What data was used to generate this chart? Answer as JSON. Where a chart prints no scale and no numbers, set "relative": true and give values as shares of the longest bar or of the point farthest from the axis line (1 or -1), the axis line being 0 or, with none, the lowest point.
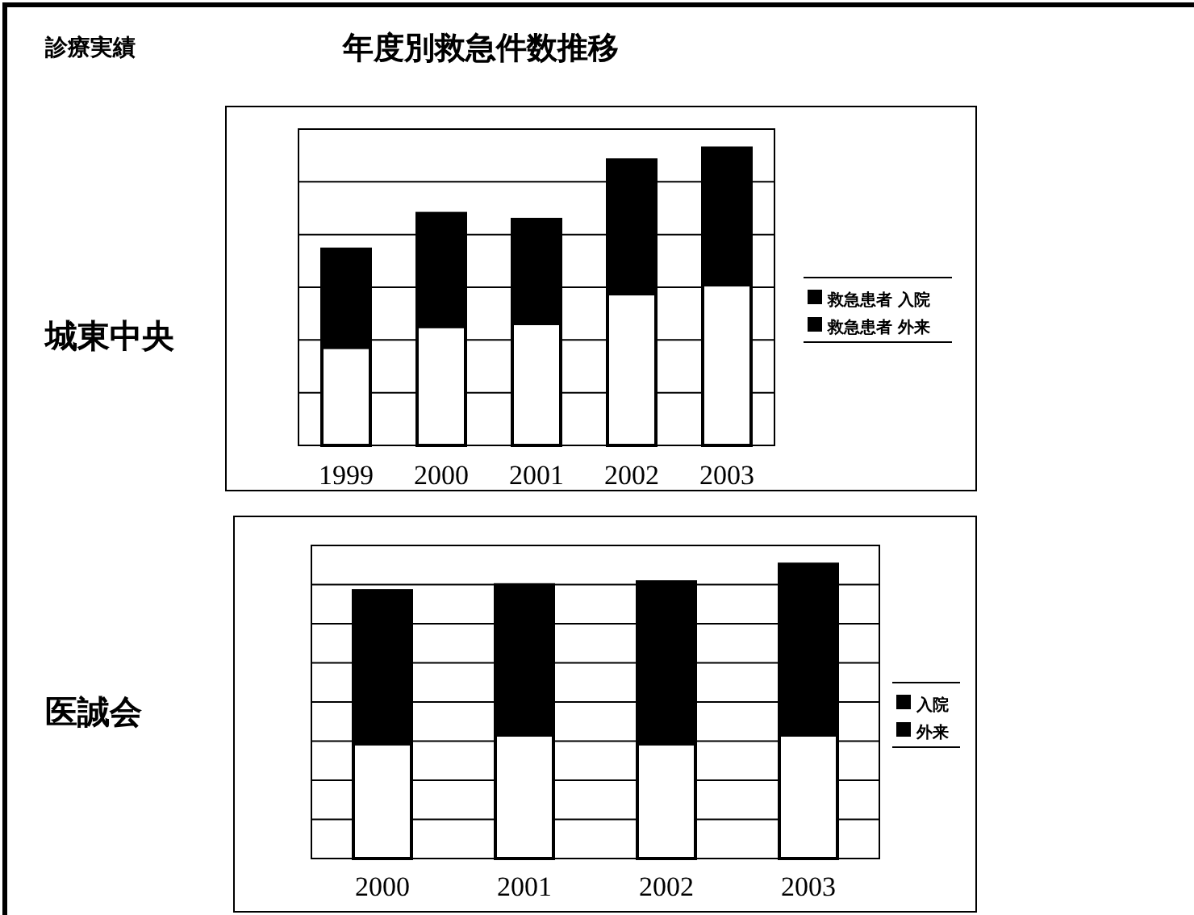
{
  "chart_data": [
    {
      "type": "bar",
      "title": "年度別救急件数推移",
      "annotations": [
        "診療実績",
        "城東中央"
      ],
      "categories": [
        "1999",
        "2000",
        "2001",
        "2002",
        "2003"
      ],
      "stacked": true,
      "relative": true,
      "grid": "y",
      "legend": "right",
      "series": [
        {
          "name": "救急患者 外来",
          "color": "#ffffff",
          "values": [
            0.33,
            0.4,
            0.41,
            0.51,
            0.54
          ]
        },
        {
          "name": "救急患者 入院",
          "color": "#000000",
          "values": [
            0.33,
            0.38,
            0.35,
            0.45,
            0.46
          ]
        }
      ]
    },
    {
      "type": "bar",
      "annotations": [
        "医誠会"
      ],
      "categories": [
        "2000",
        "2001",
        "2002",
        "2003"
      ],
      "stacked": true,
      "relative": true,
      "grid": "y",
      "legend": "right",
      "series": [
        {
          "name": "外来",
          "color": "#ffffff",
          "values": [
            0.39,
            0.42,
            0.39,
            0.42
          ]
        },
        {
          "name": "入院",
          "color": "#000000",
          "values": [
            0.52,
            0.51,
            0.55,
            0.58
          ]
        }
      ]
    }
  ]
}
